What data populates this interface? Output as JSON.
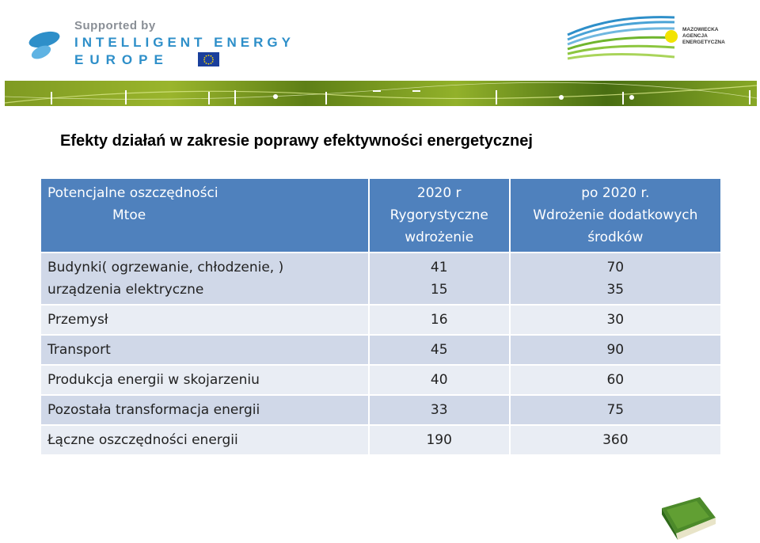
{
  "header": {
    "iee": {
      "supported_by": "Supported by",
      "line1": "INTELLIGENT ENERGY",
      "line2": "EUROPE"
    },
    "mae": {
      "line1": "MAZOWIECKA",
      "line2": "AGENCJA",
      "line3": "ENERGETYCZNA"
    }
  },
  "title": "Efekty działań w zakresie poprawy efektywności energetycznej",
  "table": {
    "headers": [
      {
        "lines": [
          "Potencjalne oszczędności",
          "Mtoe"
        ]
      },
      {
        "lines": [
          "2020 r",
          "Rygorystyczne",
          "wdrożenie"
        ]
      },
      {
        "lines": [
          "po  2020 r.",
          "Wdrożenie dodatkowych",
          "środków"
        ]
      }
    ],
    "rows": [
      {
        "c0": [
          "Budynki( ogrzewanie, chłodzenie, )",
          "urządzenia elektryczne"
        ],
        "c1": [
          "41",
          "15"
        ],
        "c2": [
          "70",
          "35"
        ]
      },
      {
        "c0": [
          "Przemysł"
        ],
        "c1": [
          "16"
        ],
        "c2": [
          "30"
        ]
      },
      {
        "c0": [
          "Transport"
        ],
        "c1": [
          "45"
        ],
        "c2": [
          "90"
        ]
      },
      {
        "c0": [
          "Produkcja energii w skojarzeniu"
        ],
        "c1": [
          "40"
        ],
        "c2": [
          "60"
        ]
      },
      {
        "c0": [
          "Pozostała transformacja energii"
        ],
        "c1": [
          "33"
        ],
        "c2": [
          "75"
        ]
      },
      {
        "c0": [
          "Łączne oszczędności energii"
        ],
        "c1": [
          "190"
        ],
        "c2": [
          "360"
        ]
      }
    ]
  },
  "colors": {
    "header_bg": "#4f81bd",
    "row_dark": "#d0d8e8",
    "row_light": "#e9edf4",
    "iee_blue": "#2e8fc9",
    "banner_green": "#7f9a22"
  }
}
